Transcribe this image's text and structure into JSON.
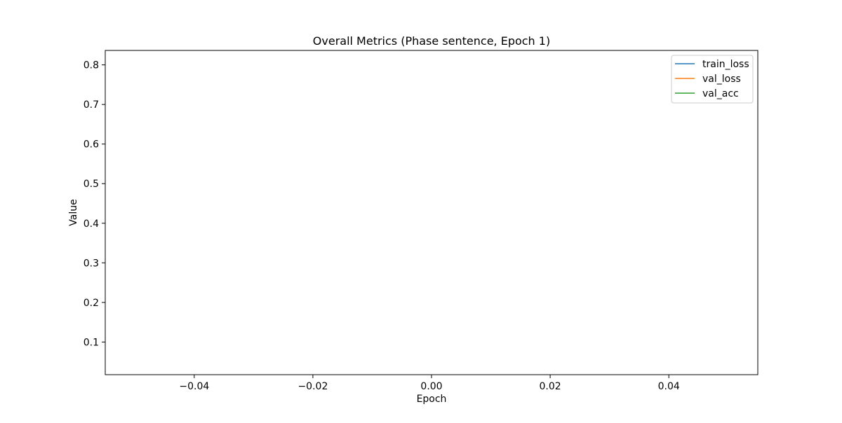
{
  "chart_data": {
    "type": "line",
    "title": "Overall Metrics (Phase sentence, Epoch 1)",
    "xlabel": "Epoch",
    "ylabel": "Value",
    "xlim": [
      -0.055,
      0.055
    ],
    "ylim": [
      0.0175,
      0.8365
    ],
    "x_ticks": [
      -0.04,
      -0.02,
      0.0,
      0.02,
      0.04
    ],
    "x_tick_labels": [
      "−0.04",
      "−0.02",
      "0.00",
      "0.02",
      "0.04"
    ],
    "y_ticks": [
      0.1,
      0.2,
      0.3,
      0.4,
      0.5,
      0.6,
      0.7,
      0.8
    ],
    "y_tick_labels": [
      "0.1",
      "0.2",
      "0.3",
      "0.4",
      "0.5",
      "0.6",
      "0.7",
      "0.8"
    ],
    "grid": false,
    "legend_position": "top-right",
    "series": [
      {
        "name": "train_loss",
        "color": "#1f77b4",
        "x": [],
        "y": []
      },
      {
        "name": "val_loss",
        "color": "#ff7f0e",
        "x": [],
        "y": []
      },
      {
        "name": "val_acc",
        "color": "#2ca02c",
        "x": [],
        "y": []
      }
    ]
  }
}
